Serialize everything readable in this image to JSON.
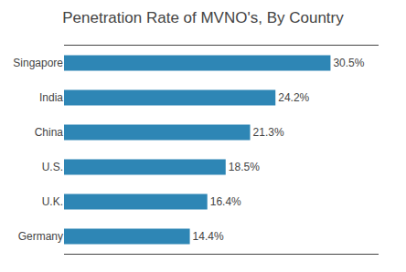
{
  "chart_data": {
    "type": "bar",
    "orientation": "horizontal",
    "title": "Penetration Rate of MVNO's, By Country",
    "categories": [
      "Singapore",
      "India",
      "China",
      "U.S.",
      "U.K.",
      "Germany"
    ],
    "values": [
      30.5,
      24.2,
      21.3,
      18.5,
      16.4,
      14.4
    ],
    "value_labels": [
      "30.5%",
      "24.2%",
      "21.3%",
      "18.5%",
      "16.4%",
      "14.4%"
    ],
    "data_labels": true,
    "color": "#2e86b5",
    "xlim": [
      0,
      36
    ],
    "tick_labels": "y",
    "grid": false
  }
}
